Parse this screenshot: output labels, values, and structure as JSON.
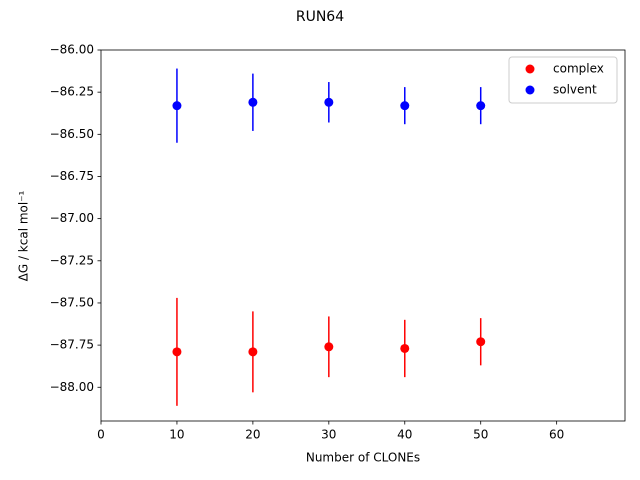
{
  "chart_data": {
    "type": "errorbar-scatter",
    "title": "RUN64",
    "xlabel": "Number of CLONEs",
    "ylabel": "ΔG / kcal mol⁻¹",
    "x": [
      10,
      20,
      30,
      40,
      50
    ],
    "series": [
      {
        "name": "complex",
        "color": "#ff0000",
        "values": [
          -87.79,
          -87.79,
          -87.76,
          -87.77,
          -87.73
        ],
        "errors": [
          0.32,
          0.24,
          0.18,
          0.17,
          0.14
        ]
      },
      {
        "name": "solvent",
        "color": "#0000ff",
        "values": [
          -86.33,
          -86.31,
          -86.31,
          -86.33,
          -86.33
        ],
        "errors": [
          0.22,
          0.17,
          0.12,
          0.11,
          0.11
        ]
      }
    ],
    "xlim": [
      0,
      69
    ],
    "xticks": [
      0,
      10,
      20,
      30,
      40,
      50,
      60
    ],
    "ylim": [
      -88.2,
      -86.0
    ],
    "yticks": [
      {
        "value": -88.0,
        "label": "−88.00"
      },
      {
        "value": -87.75,
        "label": "−87.75"
      },
      {
        "value": -87.5,
        "label": "−87.50"
      },
      {
        "value": -87.25,
        "label": "−87.25"
      },
      {
        "value": -87.0,
        "label": "−87.00"
      },
      {
        "value": -86.75,
        "label": "−86.75"
      },
      {
        "value": -86.5,
        "label": "−86.50"
      },
      {
        "value": -86.25,
        "label": "−86.25"
      },
      {
        "value": -86.0,
        "label": "−86.00"
      }
    ],
    "legend": "upper right",
    "grid": false
  }
}
